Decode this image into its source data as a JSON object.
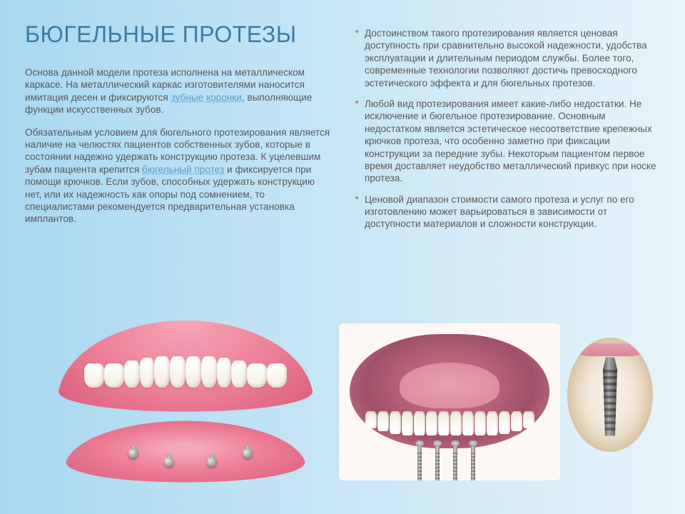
{
  "title": "БЮГЕЛЬНЫЕ ПРОТЕЗЫ",
  "left": {
    "p1a": "Основа данной модели протеза исполнена на металлическом каркасе. На металлический каркас изготовителями наносится имитация десен и фиксируются ",
    "link1": "зубные коронки",
    "p1b": ", выполняющие функции искусственных зубов.",
    "p2a": "Обязательным условием для бюгельного протезирования является наличие на челюстях пациентов собственных зубов, которые в состоянии надежно удержать конструкцию протеза. К уцелевшим зубам пациента крепится ",
    "link2": "бюгельный  протез",
    "p2b": " и фиксируется при помощи крючков. Если зубов, способных удержать конструкцию нет, или их надежность как опоры под сомнением, то специалистами рекомендуется предварительная установка имплантов."
  },
  "right": {
    "b1": "Достоинством такого протезирования является ценовая доступность при сравнительно высокой надежности, удобства эксплуатации и длительным периодом службы. Более того, современные технологии позволяют достичь превосходного эстетического эффекта и для бюгельных протезов.",
    "b2": "Любой вид протезирования имеет какие-либо недостатки. Не исключение и бюгельное протезирование. Основным недостатком является эстетическое несоответствие крепежных крючков протеза, что особенно заметно при фиксации конструкции за передние зубы. Некоторым пациентом первое время доставляет неудобство металлический привкус при носке протеза.",
    "b3": "Ценовой диапазон стоимости самого протеза и услуг по его изготовлению может варьироваться в зависимости от доступности материалов и сложности конструкции."
  },
  "colors": {
    "title": "#3a7ca5",
    "text": "#595959",
    "link": "#5a9bc9",
    "bullet": "#c55a11",
    "bg_start": "#a8d8f0",
    "bg_end": "#e8f4fb"
  }
}
